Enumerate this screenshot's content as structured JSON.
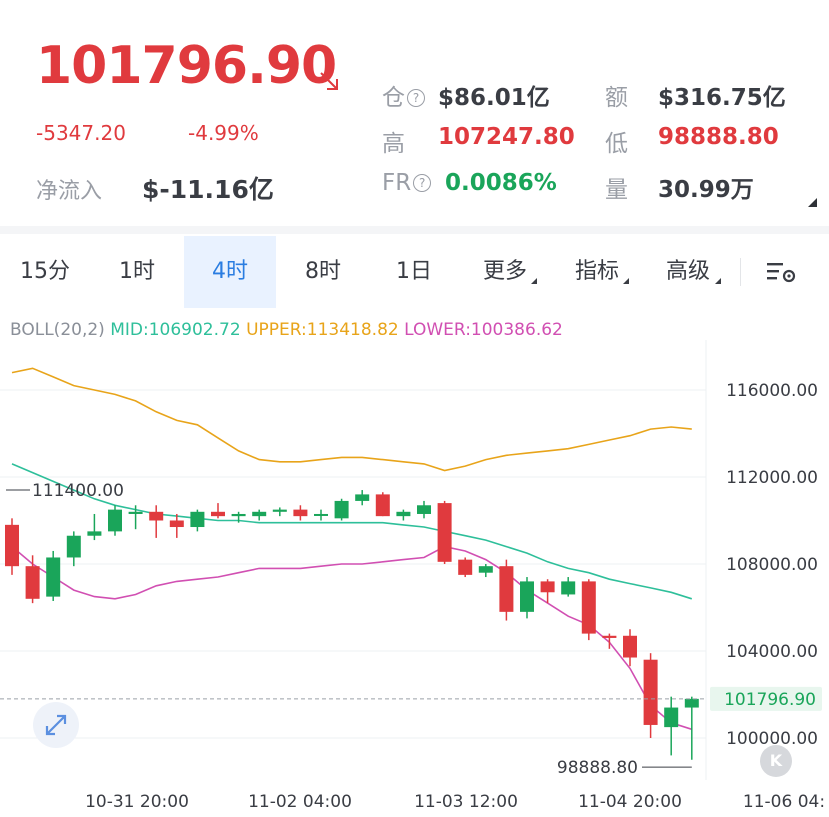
{
  "ticker": {
    "price": "101796.90",
    "change": "-5347.20",
    "change_pct": "-4.99%",
    "net_inflow_label": "净流入",
    "net_inflow_value": "$-11.16亿"
  },
  "stats": {
    "open_interest_label": "仓",
    "open_interest_value": "$86.01亿",
    "turnover_label": "额",
    "turnover_value": "$316.75亿",
    "high_label": "高",
    "high_value": "107247.80",
    "low_label": "低",
    "low_value": "98888.80",
    "funding_rate_label": "FR",
    "funding_rate_value": "0.0086%",
    "volume_label": "量",
    "volume_value": "30.99万"
  },
  "tabs": [
    {
      "label": "15分",
      "active": false
    },
    {
      "label": "1时",
      "active": false
    },
    {
      "label": "4时",
      "active": true
    },
    {
      "label": "8时",
      "active": false
    },
    {
      "label": "1日",
      "active": false
    },
    {
      "label": "更多",
      "active": false
    },
    {
      "label": "指标",
      "active": false
    },
    {
      "label": "高级",
      "active": false
    }
  ],
  "icons": {
    "down_arrow": "arrow-down-right-icon",
    "settings": "chart-settings-icon",
    "expand": "expand-icon",
    "k_button": "K"
  },
  "colors": {
    "up": "#1aa55a",
    "down": "#e03a3e",
    "mid": "#2ebf9a",
    "upper": "#e8a41a",
    "lower": "#d14fb2",
    "accent": "#2a7de1"
  },
  "chart_data": {
    "type": "candlestick",
    "indicator": {
      "name": "BOLL(20,2)",
      "mid_label": "MID:106902.72",
      "upper_label": "UPPER:113418.82",
      "lower_label": "LOWER:100386.62"
    },
    "y_ticks": [
      "116000.00",
      "112000.00",
      "108000.00",
      "104000.00",
      "100000.00"
    ],
    "y_tick_values": [
      116000,
      112000,
      108000,
      104000,
      100000
    ],
    "x_ticks": [
      "10-31 20:00",
      "11-02 04:00",
      "11-03 12:00",
      "11-04 20:00",
      "11-06 04:"
    ],
    "current_price_label": "101796.90",
    "current_price": 101796.9,
    "high_marker_label": "111400.00",
    "high_marker": 111400,
    "low_marker_label": "98888.80",
    "low_marker": 98888.8,
    "ylim": [
      97000,
      117500
    ],
    "candles": [
      {
        "o": 109800,
        "h": 110100,
        "l": 107500,
        "c": 107900
      },
      {
        "o": 107900,
        "h": 108400,
        "l": 106200,
        "c": 106400
      },
      {
        "o": 106500,
        "h": 108600,
        "l": 106300,
        "c": 108300
      },
      {
        "o": 108300,
        "h": 109500,
        "l": 107900,
        "c": 109300
      },
      {
        "o": 109300,
        "h": 110300,
        "l": 109100,
        "c": 109500
      },
      {
        "o": 109500,
        "h": 110700,
        "l": 109300,
        "c": 110500
      },
      {
        "o": 110300,
        "h": 110700,
        "l": 109600,
        "c": 110400
      },
      {
        "o": 110400,
        "h": 110700,
        "l": 109200,
        "c": 110000
      },
      {
        "o": 110000,
        "h": 110300,
        "l": 109200,
        "c": 109700
      },
      {
        "o": 109700,
        "h": 110500,
        "l": 109500,
        "c": 110400
      },
      {
        "o": 110400,
        "h": 110800,
        "l": 110100,
        "c": 110200
      },
      {
        "o": 110200,
        "h": 110400,
        "l": 109900,
        "c": 110300
      },
      {
        "o": 110200,
        "h": 110500,
        "l": 110000,
        "c": 110400
      },
      {
        "o": 110400,
        "h": 110600,
        "l": 110200,
        "c": 110500
      },
      {
        "o": 110500,
        "h": 110700,
        "l": 110000,
        "c": 110200
      },
      {
        "o": 110300,
        "h": 110500,
        "l": 110000,
        "c": 110300
      },
      {
        "o": 110100,
        "h": 111000,
        "l": 110000,
        "c": 110900
      },
      {
        "o": 110900,
        "h": 111400,
        "l": 110700,
        "c": 111200
      },
      {
        "o": 111200,
        "h": 111300,
        "l": 110200,
        "c": 110200
      },
      {
        "o": 110200,
        "h": 110500,
        "l": 110000,
        "c": 110400
      },
      {
        "o": 110300,
        "h": 110900,
        "l": 110100,
        "c": 110700
      },
      {
        "o": 110800,
        "h": 110900,
        "l": 108000,
        "c": 108100
      },
      {
        "o": 108200,
        "h": 108300,
        "l": 107400,
        "c": 107500
      },
      {
        "o": 107600,
        "h": 108000,
        "l": 107400,
        "c": 107900
      },
      {
        "o": 107900,
        "h": 108200,
        "l": 105400,
        "c": 105800
      },
      {
        "o": 105800,
        "h": 107400,
        "l": 105500,
        "c": 107200
      },
      {
        "o": 107200,
        "h": 107300,
        "l": 106200,
        "c": 106700
      },
      {
        "o": 106600,
        "h": 107400,
        "l": 106500,
        "c": 107200
      },
      {
        "o": 107200,
        "h": 107300,
        "l": 104500,
        "c": 104800
      },
      {
        "o": 104700,
        "h": 104800,
        "l": 104100,
        "c": 104600
      },
      {
        "o": 104700,
        "h": 105000,
        "l": 103300,
        "c": 103700
      },
      {
        "o": 103600,
        "h": 103900,
        "l": 100000,
        "c": 100600
      },
      {
        "o": 100500,
        "h": 101900,
        "l": 99200,
        "c": 101400
      },
      {
        "o": 101400,
        "h": 101900,
        "l": 99000,
        "c": 101800
      }
    ],
    "boll_upper": [
      116800,
      117000,
      116600,
      116200,
      116000,
      115800,
      115500,
      115000,
      114600,
      114400,
      113800,
      113200,
      112800,
      112700,
      112700,
      112800,
      112900,
      112900,
      112800,
      112700,
      112600,
      112300,
      112500,
      112800,
      113000,
      113100,
      113200,
      113300,
      113500,
      113700,
      113900,
      114200,
      114300,
      114200
    ],
    "boll_mid": [
      112600,
      112200,
      111800,
      111400,
      111000,
      110700,
      110500,
      110300,
      110200,
      110100,
      110000,
      110000,
      109900,
      109900,
      109900,
      109900,
      109900,
      109900,
      109900,
      109800,
      109700,
      109500,
      109300,
      109100,
      108800,
      108500,
      108100,
      107800,
      107600,
      107300,
      107100,
      106900,
      106700,
      106400
    ],
    "boll_lower": [
      108800,
      108000,
      107400,
      106800,
      106500,
      106400,
      106600,
      107000,
      107200,
      107300,
      107400,
      107600,
      107800,
      107800,
      107800,
      107900,
      108000,
      108000,
      108100,
      108200,
      108300,
      108800,
      108600,
      108200,
      107600,
      106800,
      106200,
      105600,
      105200,
      104400,
      103200,
      101500,
      100700,
      100400
    ]
  }
}
